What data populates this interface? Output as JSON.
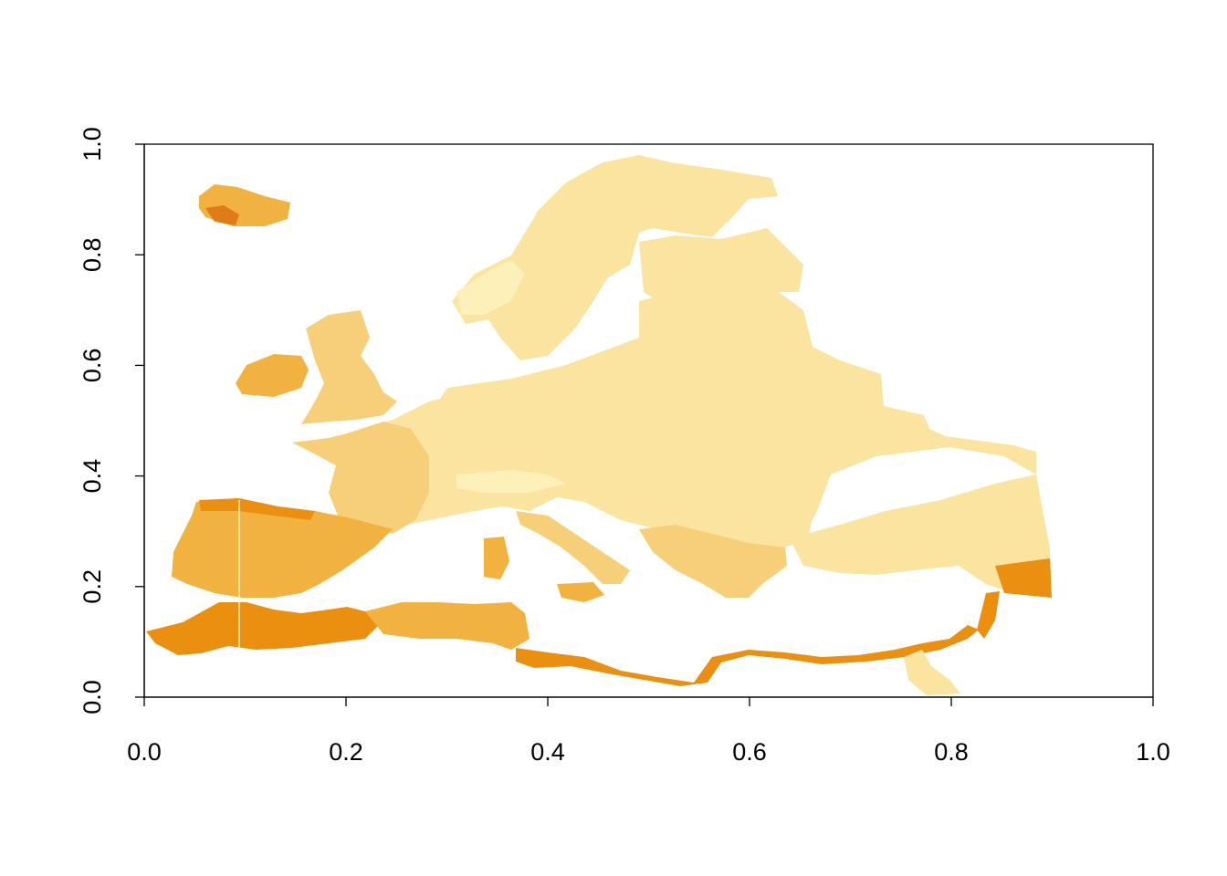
{
  "chart_data": {
    "type": "heatmap",
    "title": "",
    "xlabel": "",
    "ylabel": "",
    "xlim": [
      0.0,
      1.0
    ],
    "ylim": [
      0.0,
      1.0
    ],
    "x_ticks": [
      "0.0",
      "0.2",
      "0.4",
      "0.6",
      "0.8",
      "1.0"
    ],
    "y_ticks": [
      "0.0",
      "0.2",
      "0.4",
      "0.6",
      "0.8",
      "1.0"
    ],
    "legend": "none",
    "grid": false,
    "colors": {
      "lightest": "#fdf0b8",
      "light": "#fbe3a0",
      "medium": "#f7cf78",
      "orange": "#f2b240",
      "dark_orange": "#ea8f10",
      "red_orange": "#d96a08"
    }
  }
}
